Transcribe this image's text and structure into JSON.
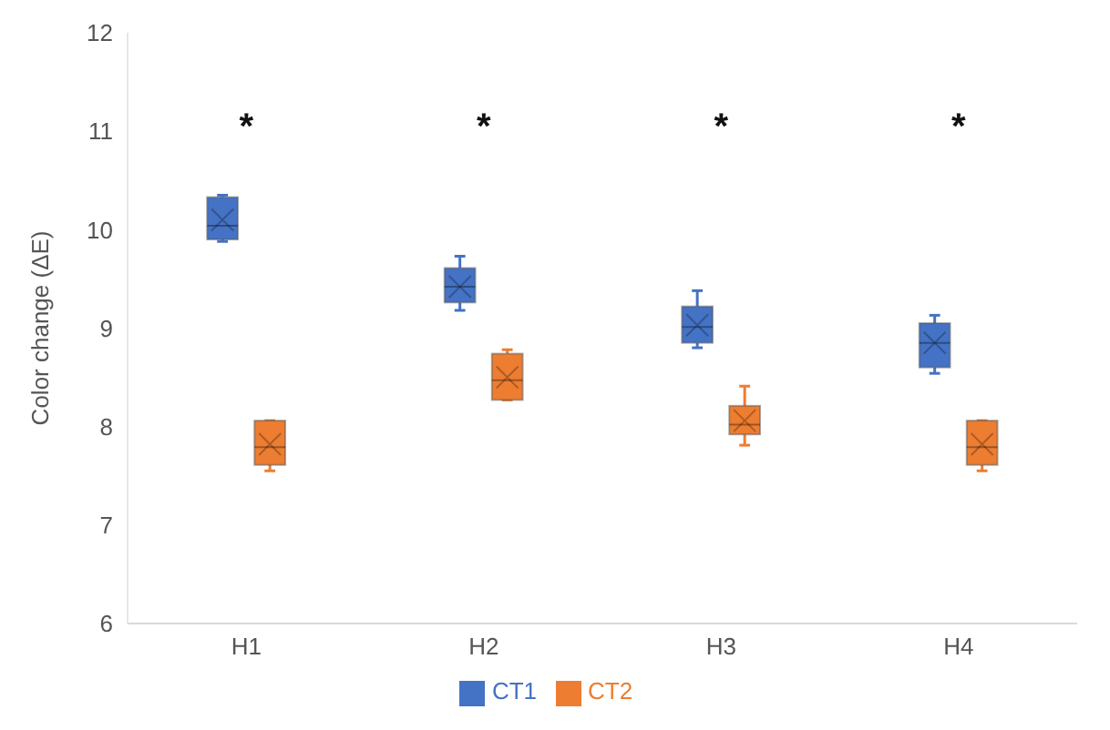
{
  "chart_data": {
    "type": "box",
    "ylabel": "Color change (ΔE)",
    "categories": [
      "H1",
      "H2",
      "H3",
      "H4"
    ],
    "ylim": [
      6,
      12
    ],
    "yticks": [
      6,
      7,
      8,
      9,
      10,
      11,
      12
    ],
    "grid": false,
    "legend": "bottom",
    "series": [
      {
        "name": "CT1",
        "color": "#4472c4",
        "boxes": [
          {
            "low": 9.88,
            "q1": 9.9,
            "median": 10.04,
            "q3": 10.33,
            "high": 10.35,
            "mean": 10.1
          },
          {
            "low": 9.18,
            "q1": 9.26,
            "median": 9.42,
            "q3": 9.61,
            "high": 9.73,
            "mean": 9.42
          },
          {
            "low": 8.8,
            "q1": 8.85,
            "median": 9.01,
            "q3": 9.22,
            "high": 9.38,
            "mean": 9.03
          },
          {
            "low": 8.54,
            "q1": 8.6,
            "median": 8.85,
            "q3": 9.05,
            "high": 9.13,
            "mean": 8.85
          }
        ]
      },
      {
        "name": "CT2",
        "color": "#ed7d31",
        "boxes": [
          {
            "low": 7.55,
            "q1": 7.61,
            "median": 7.79,
            "q3": 8.06,
            "high": 8.06,
            "mean": 7.82
          },
          {
            "low": 8.27,
            "q1": 8.27,
            "median": 8.47,
            "q3": 8.74,
            "high": 8.78,
            "mean": 8.5
          },
          {
            "low": 7.81,
            "q1": 7.92,
            "median": 8.02,
            "q3": 8.21,
            "high": 8.41,
            "mean": 8.06
          },
          {
            "low": 7.55,
            "q1": 7.61,
            "median": 7.79,
            "q3": 8.06,
            "high": 8.06,
            "mean": 7.82
          }
        ]
      }
    ],
    "annotations": [
      "*",
      "*",
      "*",
      "*"
    ]
  }
}
